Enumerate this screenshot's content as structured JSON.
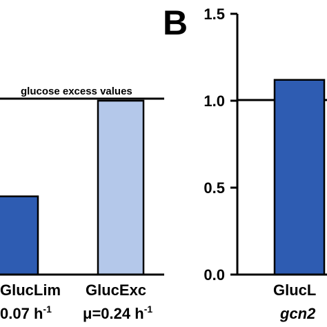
{
  "chart_data": [
    {
      "type": "bar",
      "panel_label": "",
      "categories": [
        "GlucLim",
        "GlucExc"
      ],
      "category_sublabels": [
        "0.07",
        "μ=0.24"
      ],
      "unit_base": "h",
      "unit_exp": "-1",
      "values": [
        0.45,
        1.0
      ],
      "colors": [
        "#2e5cb2",
        "#b4c8ea"
      ],
      "reference_line": {
        "value": 1.0,
        "label": "glucose excess values"
      },
      "ylim": [
        0,
        1.5
      ],
      "yticks": [],
      "title": "",
      "xlabel": "",
      "ylabel": "",
      "grid": false
    },
    {
      "type": "bar",
      "panel_label": "B",
      "categories": [
        "GlucL"
      ],
      "category_sublabels": [
        "gcn2"
      ],
      "values": [
        1.12
      ],
      "colors": [
        "#2e5cb2"
      ],
      "reference_line": {
        "value": 1.0,
        "label": ""
      },
      "ylim": [
        0,
        1.5
      ],
      "yticks": [
        "0.0",
        "0.5",
        "1.0",
        "1.5"
      ],
      "title": "",
      "xlabel": "",
      "ylabel": "",
      "grid": false
    }
  ]
}
